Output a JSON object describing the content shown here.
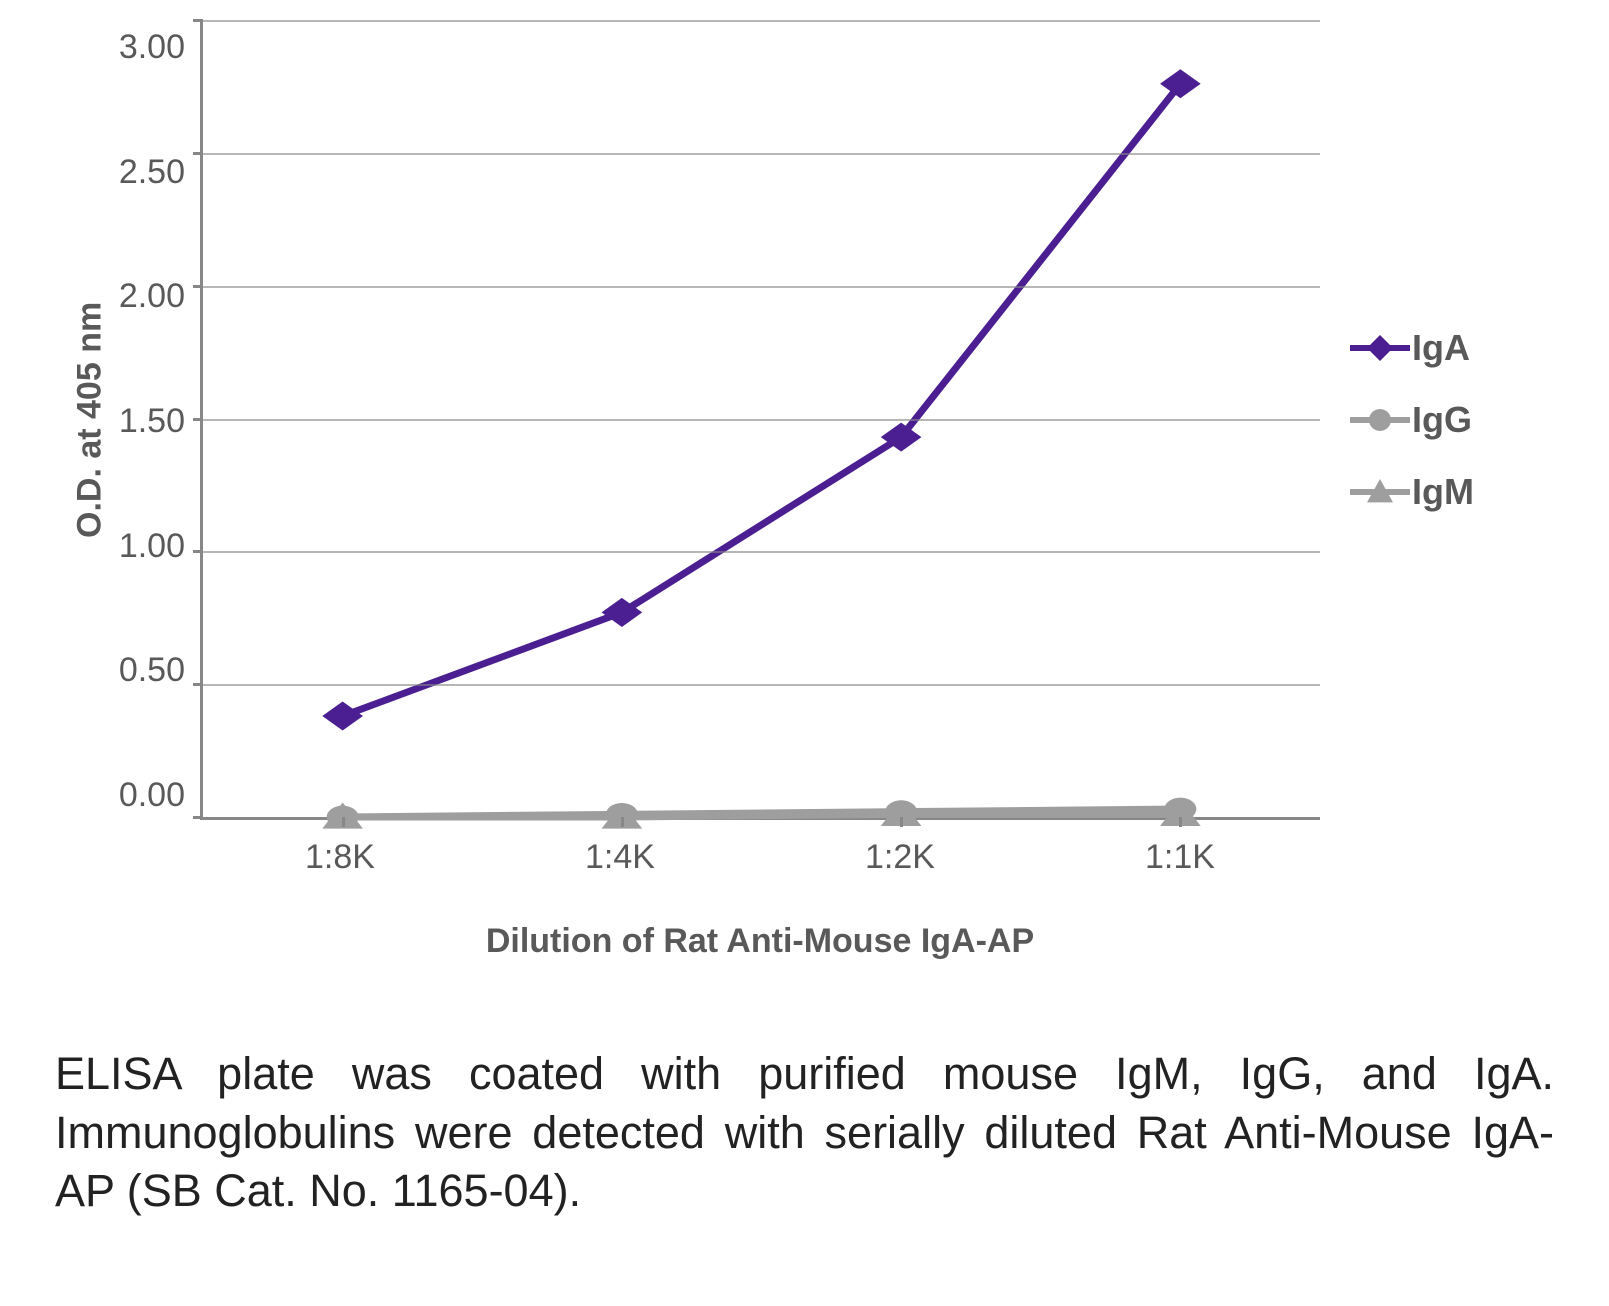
{
  "chart": {
    "type": "line",
    "ylabel": "O.D. at 405 nm",
    "xlabel": "Dilution of Rat Anti-Mouse IgA-AP",
    "ylim": [
      0,
      3.0
    ],
    "ytick_step": 0.5,
    "yticks": [
      "3.00",
      "2.50",
      "2.00",
      "1.50",
      "1.00",
      "0.50",
      "0.00"
    ],
    "categories": [
      "1:8K",
      "1:4K",
      "1:2K",
      "1:1K"
    ],
    "label_fontsize": 34,
    "tick_fontsize": 34,
    "legend_fontsize": 36,
    "axis_color": "#878787",
    "grid_color": "#878787",
    "text_color": "#595959",
    "background_color": "#ffffff",
    "line_width": 7,
    "marker_size": 26,
    "series": [
      {
        "name": "IgA",
        "color": "#4b1f91",
        "marker": "diamond",
        "values": [
          0.38,
          0.77,
          1.43,
          2.76
        ]
      },
      {
        "name": "IgG",
        "color": "#9e9e9e",
        "marker": "circle",
        "values": [
          0.0,
          0.01,
          0.02,
          0.03
        ]
      },
      {
        "name": "IgM",
        "color": "#9e9e9e",
        "marker": "triangle",
        "values": [
          0.0,
          0.0,
          0.01,
          0.01
        ]
      }
    ]
  },
  "caption": "ELISA plate was coated with purified mouse IgM, IgG, and IgA. Immunoglobulins were detected with serially diluted Rat Anti-Mouse IgA-AP (SB Cat. No. 1165-04)."
}
